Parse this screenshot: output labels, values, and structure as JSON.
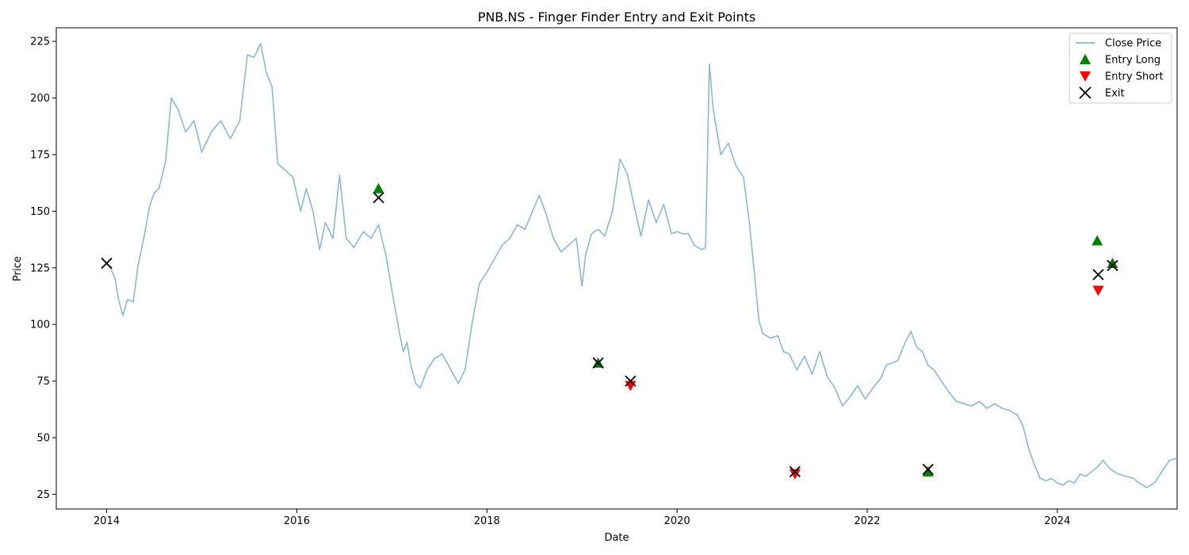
{
  "chart_data": {
    "type": "line",
    "title": "PNB.NS - Finger Finder Entry and Exit Points",
    "xlabel": "Date",
    "ylabel": "Price",
    "xlim": [
      2013.47,
      2025.26
    ],
    "ylim": [
      18.5,
      231
    ],
    "x_ticks": [
      2014,
      2016,
      2018,
      2020,
      2022,
      2024
    ],
    "y_ticks": [
      25,
      50,
      75,
      100,
      125,
      150,
      175,
      200,
      225
    ],
    "legend_position": "top-right",
    "legend": [
      "Close Price",
      "Entry Long",
      "Entry Short",
      "Exit"
    ],
    "colors": {
      "close_price": "#8ab8d8",
      "entry_long": "#008000",
      "entry_short": "#ff0000",
      "exit": "#000000"
    },
    "series": [
      {
        "name": "Close Price",
        "type": "line",
        "points": [
          [
            2014.0,
            127
          ],
          [
            2014.05,
            124
          ],
          [
            2014.09,
            120
          ],
          [
            2014.12,
            112
          ],
          [
            2014.17,
            104
          ],
          [
            2014.22,
            111
          ],
          [
            2014.28,
            110
          ],
          [
            2014.33,
            126
          ],
          [
            2014.4,
            140
          ],
          [
            2014.45,
            152
          ],
          [
            2014.5,
            158
          ],
          [
            2014.55,
            160
          ],
          [
            2014.62,
            172
          ],
          [
            2014.68,
            200
          ],
          [
            2014.75,
            195
          ],
          [
            2014.83,
            185
          ],
          [
            2014.92,
            190
          ],
          [
            2015.0,
            176
          ],
          [
            2015.1,
            185
          ],
          [
            2015.2,
            190
          ],
          [
            2015.3,
            182
          ],
          [
            2015.4,
            190
          ],
          [
            2015.48,
            219
          ],
          [
            2015.55,
            218
          ],
          [
            2015.62,
            224
          ],
          [
            2015.68,
            211
          ],
          [
            2015.74,
            205
          ],
          [
            2015.8,
            171
          ],
          [
            2015.88,
            168
          ],
          [
            2015.96,
            165
          ],
          [
            2016.04,
            150
          ],
          [
            2016.1,
            160
          ],
          [
            2016.17,
            150
          ],
          [
            2016.24,
            133
          ],
          [
            2016.3,
            145
          ],
          [
            2016.38,
            138
          ],
          [
            2016.45,
            166
          ],
          [
            2016.52,
            138
          ],
          [
            2016.6,
            134
          ],
          [
            2016.7,
            141
          ],
          [
            2016.78,
            138
          ],
          [
            2016.86,
            144
          ],
          [
            2016.94,
            130
          ],
          [
            2016.98,
            120
          ],
          [
            2017.03,
            108
          ],
          [
            2017.08,
            96
          ],
          [
            2017.12,
            88
          ],
          [
            2017.16,
            92
          ],
          [
            2017.2,
            82
          ],
          [
            2017.25,
            74
          ],
          [
            2017.3,
            72
          ],
          [
            2017.37,
            80
          ],
          [
            2017.45,
            85
          ],
          [
            2017.53,
            87
          ],
          [
            2017.62,
            80
          ],
          [
            2017.7,
            74
          ],
          [
            2017.77,
            80
          ],
          [
            2017.85,
            102
          ],
          [
            2017.92,
            118
          ],
          [
            2018.0,
            123
          ],
          [
            2018.08,
            129
          ],
          [
            2018.16,
            135
          ],
          [
            2018.24,
            138
          ],
          [
            2018.32,
            144
          ],
          [
            2018.4,
            142
          ],
          [
            2018.48,
            150
          ],
          [
            2018.55,
            157
          ],
          [
            2018.62,
            149
          ],
          [
            2018.7,
            138
          ],
          [
            2018.78,
            132
          ],
          [
            2018.86,
            135
          ],
          [
            2018.94,
            138
          ],
          [
            2019.0,
            117
          ],
          [
            2019.04,
            131
          ],
          [
            2019.1,
            140
          ],
          [
            2019.17,
            142
          ],
          [
            2019.24,
            139
          ],
          [
            2019.32,
            150
          ],
          [
            2019.4,
            173
          ],
          [
            2019.48,
            166
          ],
          [
            2019.55,
            152
          ],
          [
            2019.62,
            139
          ],
          [
            2019.7,
            155
          ],
          [
            2019.78,
            145
          ],
          [
            2019.86,
            153
          ],
          [
            2019.94,
            140
          ],
          [
            2020.0,
            141
          ],
          [
            2020.06,
            140
          ],
          [
            2020.12,
            140
          ],
          [
            2020.18,
            135
          ],
          [
            2020.26,
            133
          ],
          [
            2020.3,
            134
          ],
          [
            2020.34,
            215
          ],
          [
            2020.38,
            195
          ],
          [
            2020.46,
            175
          ],
          [
            2020.54,
            180
          ],
          [
            2020.62,
            170
          ],
          [
            2020.7,
            165
          ],
          [
            2020.76,
            145
          ],
          [
            2020.82,
            120
          ],
          [
            2020.86,
            102
          ],
          [
            2020.9,
            96
          ],
          [
            2020.98,
            94
          ],
          [
            2021.06,
            95
          ],
          [
            2021.12,
            88
          ],
          [
            2021.18,
            87
          ],
          [
            2021.26,
            80
          ],
          [
            2021.34,
            86
          ],
          [
            2021.42,
            78
          ],
          [
            2021.5,
            88
          ],
          [
            2021.58,
            77
          ],
          [
            2021.66,
            72
          ],
          [
            2021.74,
            64
          ],
          [
            2021.82,
            68
          ],
          [
            2021.9,
            73
          ],
          [
            2021.98,
            67
          ],
          [
            2022.06,
            72
          ],
          [
            2022.14,
            76
          ],
          [
            2022.2,
            82
          ],
          [
            2022.26,
            83
          ],
          [
            2022.32,
            84
          ],
          [
            2022.4,
            92
          ],
          [
            2022.46,
            97
          ],
          [
            2022.52,
            90
          ],
          [
            2022.58,
            88
          ],
          [
            2022.64,
            82
          ],
          [
            2022.7,
            80
          ],
          [
            2022.78,
            75
          ],
          [
            2022.86,
            70
          ],
          [
            2022.94,
            66
          ],
          [
            2023.02,
            65
          ],
          [
            2023.1,
            64
          ],
          [
            2023.18,
            66
          ],
          [
            2023.26,
            63
          ],
          [
            2023.34,
            65
          ],
          [
            2023.42,
            63
          ],
          [
            2023.5,
            62
          ],
          [
            2023.58,
            60
          ],
          [
            2023.64,
            55
          ],
          [
            2023.7,
            45
          ],
          [
            2023.76,
            38
          ],
          [
            2023.82,
            32
          ],
          [
            2023.88,
            31
          ],
          [
            2023.94,
            32
          ],
          [
            2024.0,
            30
          ],
          [
            2024.06,
            29
          ],
          [
            2024.12,
            31
          ],
          [
            2024.18,
            30
          ],
          [
            2024.24,
            34
          ],
          [
            2024.3,
            33
          ],
          [
            2024.36,
            35
          ],
          [
            2024.42,
            37
          ],
          [
            2024.48,
            40
          ],
          [
            2024.56,
            36
          ],
          [
            2024.64,
            34
          ],
          [
            2024.72,
            33
          ],
          [
            2024.8,
            32
          ],
          [
            2024.86,
            30
          ],
          [
            2024.94,
            28
          ],
          [
            2025.02,
            30
          ],
          [
            2025.1,
            35
          ],
          [
            2025.18,
            40
          ],
          [
            2025.26,
            41
          ]
        ]
      },
      {
        "name": "Entry Long",
        "type": "scatter",
        "marker": "triangle-up",
        "points": [
          [
            2016.86,
            160
          ],
          [
            2019.17,
            83
          ],
          [
            2022.64,
            35
          ],
          [
            2024.42,
            137
          ],
          [
            2024.58,
            127
          ]
        ]
      },
      {
        "name": "Entry Short",
        "type": "scatter",
        "marker": "triangle-down",
        "points": [
          [
            2019.51,
            73
          ],
          [
            2021.24,
            34
          ],
          [
            2024.43,
            115
          ]
        ]
      },
      {
        "name": "Exit",
        "type": "scatter",
        "marker": "x",
        "points": [
          [
            2014.0,
            127
          ],
          [
            2016.86,
            156
          ],
          [
            2019.17,
            83
          ],
          [
            2019.51,
            75
          ],
          [
            2021.24,
            35
          ],
          [
            2022.64,
            36
          ],
          [
            2024.43,
            122
          ],
          [
            2024.58,
            126
          ]
        ]
      }
    ]
  }
}
